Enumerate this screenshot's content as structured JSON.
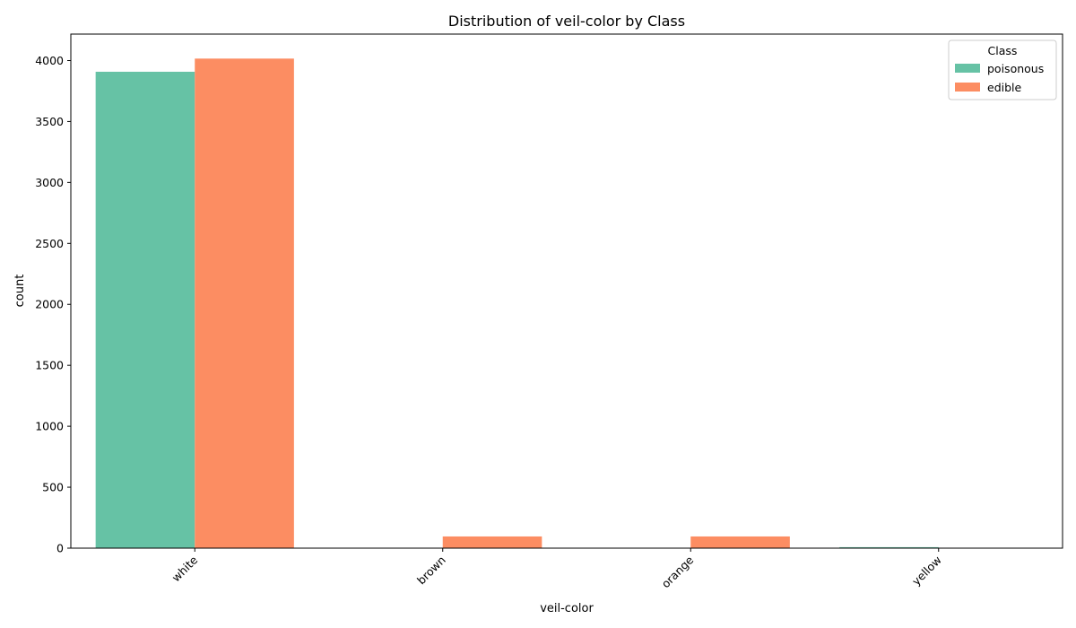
{
  "chart_data": {
    "type": "bar",
    "title": "Distribution of veil-color by Class",
    "xlabel": "veil-color",
    "ylabel": "count",
    "categories": [
      "white",
      "brown",
      "orange",
      "yellow"
    ],
    "series": [
      {
        "name": "poisonous",
        "color": "#66c2a5",
        "values": [
          3908,
          0,
          0,
          8
        ]
      },
      {
        "name": "edible",
        "color": "#fc8d62",
        "values": [
          4016,
          96,
          96,
          0
        ]
      }
    ],
    "ylim": [
      0,
      4217
    ],
    "yticks": [
      0,
      500,
      1000,
      1500,
      2000,
      2500,
      3000,
      3500,
      4000
    ],
    "grid": false,
    "legend": {
      "title": "Class",
      "placement": "top-right"
    }
  }
}
